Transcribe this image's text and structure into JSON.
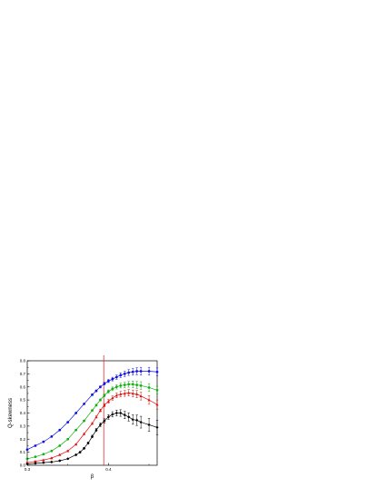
{
  "chart_data": {
    "type": "scatter",
    "xlabel": "β",
    "ylabel": "Q-skewness",
    "xlim": [
      0.3,
      0.46
    ],
    "ylim": [
      0.0,
      0.8
    ],
    "x_ticks": [
      {
        "value": 0.3,
        "label": "0.3"
      },
      {
        "value": 0.4,
        "label": "0.4"
      }
    ],
    "y_ticks": [
      {
        "value": 0.0,
        "label": "0.0"
      },
      {
        "value": 0.1,
        "label": "0.1"
      },
      {
        "value": 0.2,
        "label": "0.2"
      },
      {
        "value": 0.3,
        "label": "0.3"
      },
      {
        "value": 0.4,
        "label": "0.4"
      },
      {
        "value": 0.5,
        "label": "0.5"
      },
      {
        "value": 0.6,
        "label": "0.6"
      },
      {
        "value": 0.7,
        "label": "0.7"
      },
      {
        "value": 0.8,
        "label": "0.8"
      }
    ],
    "vertical_line": {
      "x": 0.3942,
      "color": "#e03030"
    },
    "series": [
      {
        "color": "#1010e0",
        "marker": "circle",
        "x": [
          0.3,
          0.31,
          0.32,
          0.33,
          0.34,
          0.35,
          0.36,
          0.37,
          0.38,
          0.385,
          0.39,
          0.395,
          0.4,
          0.405,
          0.41,
          0.415,
          0.42,
          0.425,
          0.43,
          0.435,
          0.44,
          0.45,
          0.46
        ],
        "y": [
          0.12,
          0.15,
          0.18,
          0.22,
          0.27,
          0.33,
          0.4,
          0.47,
          0.54,
          0.57,
          0.6,
          0.625,
          0.645,
          0.66,
          0.675,
          0.69,
          0.7,
          0.71,
          0.715,
          0.72,
          0.72,
          0.72,
          0.715
        ],
        "err": [
          0.004,
          0.004,
          0.004,
          0.004,
          0.005,
          0.005,
          0.005,
          0.005,
          0.006,
          0.007,
          0.008,
          0.01,
          0.012,
          0.014,
          0.016,
          0.018,
          0.02,
          0.022,
          0.025,
          0.027,
          0.03,
          0.03,
          0.03
        ]
      },
      {
        "color": "#10b010",
        "marker": "circle",
        "x": [
          0.3,
          0.31,
          0.32,
          0.33,
          0.34,
          0.35,
          0.36,
          0.37,
          0.38,
          0.385,
          0.39,
          0.395,
          0.4,
          0.405,
          0.41,
          0.415,
          0.42,
          0.425,
          0.43,
          0.435,
          0.44,
          0.45,
          0.46
        ],
        "y": [
          0.05,
          0.065,
          0.085,
          0.11,
          0.15,
          0.2,
          0.27,
          0.34,
          0.42,
          0.46,
          0.5,
          0.535,
          0.565,
          0.585,
          0.6,
          0.61,
          0.615,
          0.62,
          0.62,
          0.615,
          0.61,
          0.595,
          0.575
        ],
        "err": [
          0.003,
          0.003,
          0.003,
          0.004,
          0.004,
          0.004,
          0.005,
          0.005,
          0.006,
          0.007,
          0.008,
          0.01,
          0.012,
          0.014,
          0.016,
          0.018,
          0.02,
          0.022,
          0.025,
          0.027,
          0.03,
          0.03,
          0.03
        ]
      },
      {
        "color": "#e01010",
        "marker": "triangle",
        "x": [
          0.3,
          0.31,
          0.32,
          0.33,
          0.34,
          0.35,
          0.36,
          0.37,
          0.38,
          0.385,
          0.39,
          0.395,
          0.4,
          0.405,
          0.41,
          0.415,
          0.42,
          0.425,
          0.43,
          0.435,
          0.44,
          0.45,
          0.46
        ],
        "y": [
          0.02,
          0.03,
          0.04,
          0.055,
          0.08,
          0.11,
          0.16,
          0.24,
          0.32,
          0.37,
          0.42,
          0.46,
          0.49,
          0.515,
          0.535,
          0.545,
          0.55,
          0.555,
          0.55,
          0.545,
          0.53,
          0.5,
          0.465
        ],
        "err": [
          0.003,
          0.003,
          0.003,
          0.004,
          0.004,
          0.004,
          0.005,
          0.006,
          0.007,
          0.008,
          0.01,
          0.012,
          0.014,
          0.016,
          0.018,
          0.02,
          0.022,
          0.024,
          0.026,
          0.028,
          0.03,
          0.033,
          0.035
        ]
      },
      {
        "color": "#000000",
        "marker": "diamond",
        "x": [
          0.3,
          0.31,
          0.32,
          0.33,
          0.34,
          0.35,
          0.36,
          0.365,
          0.37,
          0.375,
          0.38,
          0.385,
          0.39,
          0.395,
          0.4,
          0.405,
          0.41,
          0.415,
          0.42,
          0.425,
          0.43,
          0.435,
          0.44,
          0.45,
          0.46
        ],
        "y": [
          0.01,
          0.015,
          0.02,
          0.025,
          0.035,
          0.05,
          0.08,
          0.1,
          0.13,
          0.17,
          0.22,
          0.27,
          0.31,
          0.34,
          0.37,
          0.39,
          0.4,
          0.4,
          0.385,
          0.37,
          0.35,
          0.345,
          0.33,
          0.31,
          0.29
        ],
        "err": [
          0.003,
          0.003,
          0.003,
          0.003,
          0.004,
          0.004,
          0.005,
          0.006,
          0.007,
          0.008,
          0.01,
          0.012,
          0.014,
          0.016,
          0.018,
          0.02,
          0.022,
          0.025,
          0.028,
          0.032,
          0.036,
          0.04,
          0.045,
          0.05,
          0.055
        ]
      }
    ]
  }
}
